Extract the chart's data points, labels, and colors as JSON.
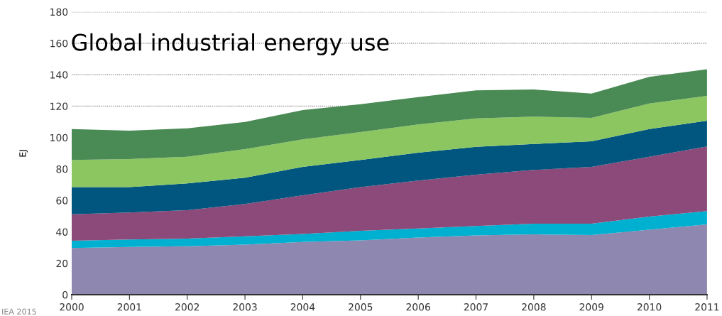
{
  "chart_data": {
    "type": "area",
    "stacked": true,
    "title": "Global industrial energy use",
    "ylabel": "EJ",
    "x": [
      2000,
      2001,
      2002,
      2003,
      2004,
      2005,
      2006,
      2007,
      2008,
      2009,
      2010,
      2011
    ],
    "xlim": [
      2000,
      2011
    ],
    "xticks": [
      2000,
      2001,
      2002,
      2003,
      2004,
      2005,
      2006,
      2007,
      2008,
      2009,
      2010,
      2011
    ],
    "ylim": [
      0,
      180
    ],
    "yticks": [
      0,
      20,
      40,
      60,
      80,
      100,
      120,
      140,
      160,
      180
    ],
    "grid": "y",
    "series": [
      {
        "color": "#8e87b0",
        "values": [
          29.7,
          30.4,
          30.9,
          31.9,
          33.6,
          34.6,
          36.4,
          37.7,
          38.4,
          38.0,
          41.4,
          44.7
        ]
      },
      {
        "color": "#00b0d0",
        "values": [
          4.6,
          4.7,
          4.8,
          5.3,
          5.1,
          6.1,
          5.8,
          6.0,
          6.8,
          7.2,
          8.3,
          8.5
        ]
      },
      {
        "color": "#8b4a7a",
        "values": [
          16.9,
          17.2,
          18.1,
          20.5,
          24.6,
          27.8,
          30.5,
          32.7,
          34.2,
          36.1,
          38.1,
          41.2
        ]
      },
      {
        "color": "#00567e",
        "values": [
          17.3,
          16.2,
          17.0,
          16.8,
          18.0,
          17.3,
          17.7,
          17.7,
          16.5,
          16.3,
          17.6,
          16.3
        ]
      },
      {
        "color": "#8cc660",
        "values": [
          17.3,
          17.8,
          17.0,
          18.1,
          17.6,
          17.7,
          18.0,
          18.1,
          17.4,
          14.9,
          16.3,
          15.8
        ]
      },
      {
        "color": "#4a8a55",
        "values": [
          19.6,
          18.1,
          18.1,
          17.3,
          18.6,
          17.7,
          17.4,
          17.8,
          17.3,
          15.5,
          16.9,
          17.0
        ]
      }
    ],
    "annotations": [
      "IEA 2015"
    ]
  }
}
